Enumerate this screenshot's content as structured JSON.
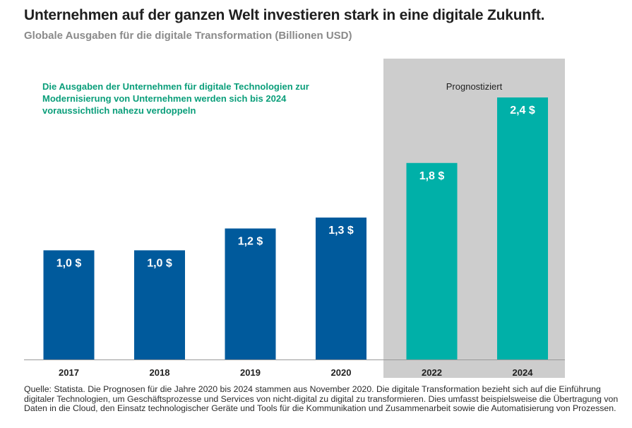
{
  "header": {
    "title": "Unternehmen auf der ganzen Welt investieren stark in eine digitale Zukunft.",
    "subtitle": "Globale Ausgaben für die digitale Transformation (Billionen USD)"
  },
  "annotation": "Die Ausgaben der Unternehmen für digitale Technologien zur Modernisierung von Unternehmen werden sich bis 2024 voraussichtlich nahezu verdoppeln",
  "forecast_label": "Prognostiziert",
  "source": "Quelle: Statista. Die Prognosen für die Jahre 2020 bis 2024 stammen aus November 2020. Die digitale Transformation bezieht sich auf die Einführung digitaler Technologien, um Geschäftsprozesse und Services von nicht-digital zu digital zu transformieren. Dies umfasst beispielsweise die Übertragung von Daten in die Cloud, den Einsatz technologischer Geräte und Tools für die Kommunikation und Zusammenarbeit sowie die Automatisierung von Prozessen.",
  "colors": {
    "actual": "#005a9c",
    "forecast": "#00b0a8",
    "forecast_band": "#cdcdcd",
    "axis": "#9a9a9a"
  },
  "chart_data": {
    "type": "bar",
    "title": "Globale Ausgaben für die digitale Transformation (Billionen USD)",
    "xlabel": "",
    "ylabel": "",
    "ylim": [
      0,
      2.4
    ],
    "grid": false,
    "categories": [
      "2017",
      "2018",
      "2019",
      "2020",
      "2022",
      "2024"
    ],
    "values": [
      1.0,
      1.0,
      1.2,
      1.3,
      1.8,
      2.4
    ],
    "data_labels": [
      "1,0 $",
      "1,0 $",
      "1,2 $",
      "1,3 $",
      "1,8 $",
      "2,4 $"
    ],
    "forecast": [
      false,
      false,
      false,
      false,
      true,
      true
    ]
  }
}
